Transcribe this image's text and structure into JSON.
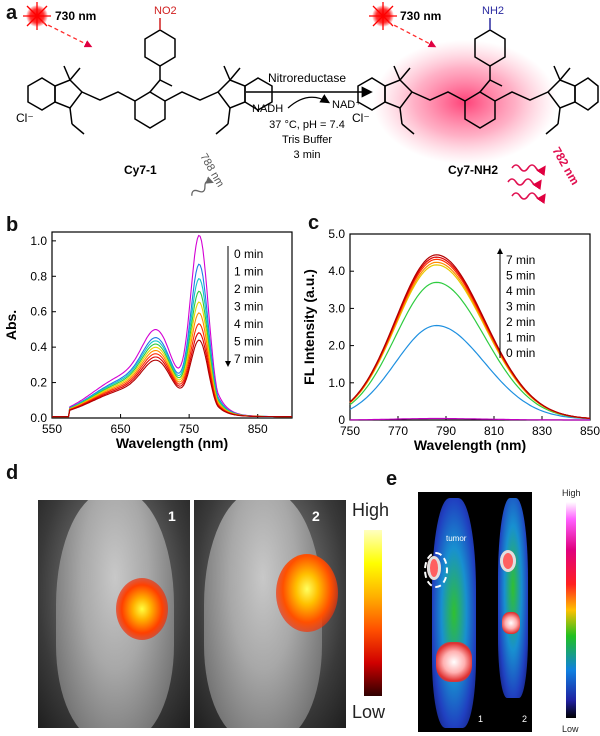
{
  "panels": {
    "a": "a",
    "b": "b",
    "c": "c",
    "d": "d",
    "e": "e"
  },
  "scheme": {
    "laser_left": "730 nm",
    "laser_right": "730 nm",
    "substituent_left": "NO2",
    "substituent_right": "NH2",
    "chloride": "Cl⁻",
    "enzyme": "Nitroreductase",
    "cofactor_in": "NADH",
    "cofactor_out": "NAD⁺",
    "conditions": "37 °C, pH = 7.4",
    "buffer": "Tris Buffer",
    "time": "3 min",
    "compound_left": "Cy7-1",
    "compound_right": "Cy7-NH2",
    "emission_left": "788 nm",
    "emission_right": "782 nm"
  },
  "chart_data": [
    {
      "type": "line",
      "panel": "b",
      "xlabel": "Wavelength (nm)",
      "ylabel": "Abs.",
      "xlim": [
        550,
        900
      ],
      "ylim": [
        0,
        1.05
      ],
      "xticks": [
        "550",
        "650",
        "750",
        "850"
      ],
      "yticks": [
        "0.0",
        "0.2",
        "0.4",
        "0.6",
        "0.8",
        "1.0"
      ],
      "legend": [
        "0 min",
        "1 min",
        "2 min",
        "3 min",
        "4 min",
        "5 min",
        "7 min"
      ],
      "series": [
        {
          "peak": 1.02,
          "shoulder": 0.54,
          "color": "#d400d4"
        },
        {
          "peak": 0.86,
          "shoulder": 0.49,
          "color": "#1e7be6"
        },
        {
          "peak": 0.78,
          "shoulder": 0.47,
          "color": "#10c8c8"
        },
        {
          "peak": 0.71,
          "shoulder": 0.45,
          "color": "#2ecc40"
        },
        {
          "peak": 0.65,
          "shoulder": 0.43,
          "color": "#e8d800"
        },
        {
          "peak": 0.59,
          "shoulder": 0.41,
          "color": "#ff8c00"
        },
        {
          "peak": 0.53,
          "shoulder": 0.39,
          "color": "#ff2a00"
        },
        {
          "peak": 0.48,
          "shoulder": 0.37,
          "color": "#e00000"
        },
        {
          "peak": 0.44,
          "shoulder": 0.35,
          "color": "#b00000"
        }
      ]
    },
    {
      "type": "line",
      "panel": "c",
      "xlabel": "Wavelength (nm)",
      "ylabel": "FL Intensity (a.u.)",
      "xlim": [
        750,
        850
      ],
      "ylim": [
        0,
        5
      ],
      "xticks": [
        "750",
        "770",
        "790",
        "810",
        "830",
        "850"
      ],
      "yticks": [
        "0",
        "1.0",
        "2.0",
        "3.0",
        "4.0",
        "5.0"
      ],
      "legend": [
        "7 min",
        "5 min",
        "4 min",
        "3 min",
        "2 min",
        "1 min",
        "0 min"
      ],
      "series": [
        {
          "peak": 0.04,
          "color": "#c000c0"
        },
        {
          "peak": 2.52,
          "color": "#1e90e0"
        },
        {
          "peak": 3.68,
          "color": "#2ecc40"
        },
        {
          "peak": 4.15,
          "color": "#e8c800"
        },
        {
          "peak": 4.22,
          "color": "#ff8c00"
        },
        {
          "peak": 4.3,
          "color": "#ff3000"
        },
        {
          "peak": 4.36,
          "color": "#e00000"
        },
        {
          "peak": 4.42,
          "color": "#b00000"
        }
      ]
    }
  ],
  "imaging_d": {
    "labels": [
      "1",
      "2"
    ],
    "scale_high": "High",
    "scale_low": "Low"
  },
  "imaging_e": {
    "labels": [
      "1",
      "2"
    ],
    "tumor": "tumor",
    "scale_high": "High",
    "scale_low": "Low"
  }
}
